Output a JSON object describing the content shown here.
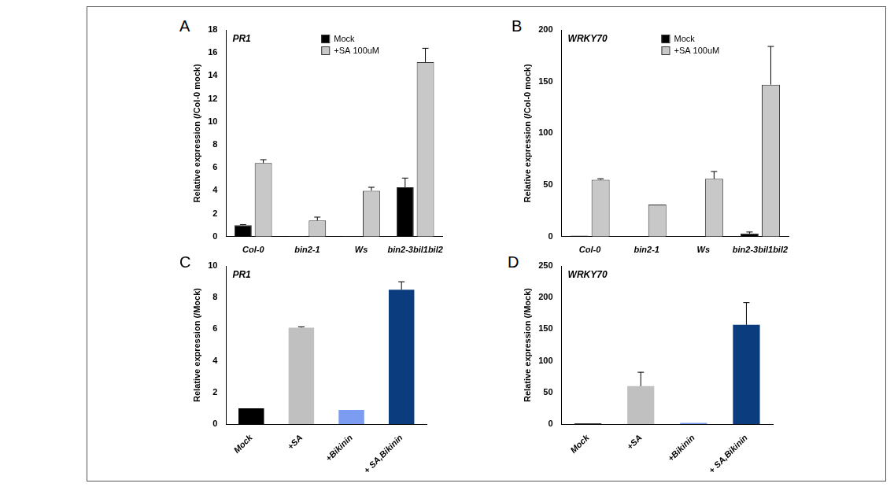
{
  "chart_data": [
    {
      "panel": "A",
      "type": "bar",
      "annotation": "PR1",
      "y_label": "Relative expression (/Col-0 mock)",
      "categories": [
        "Col-0",
        "bin2-1",
        "Ws",
        "bin2-3bil1bil2"
      ],
      "series": [
        {
          "name": "Mock",
          "color": "#000000",
          "values": [
            1.0,
            0.05,
            0.05,
            4.3
          ],
          "errors": [
            0.05,
            0,
            0,
            0.8
          ]
        },
        {
          "name": "+SA 100uM",
          "color": "#c8c8c8",
          "values": [
            6.4,
            1.4,
            4.0,
            15.2
          ],
          "errors": [
            0.3,
            0.3,
            0.3,
            1.2
          ]
        }
      ],
      "ylim": [
        0,
        18
      ],
      "yticks": [
        0,
        2,
        4,
        6,
        8,
        10,
        12,
        14,
        16,
        18
      ],
      "legend": "top",
      "grid": false
    },
    {
      "panel": "B",
      "type": "bar",
      "annotation": "WRKY70",
      "y_label": "Relative expression (/Col-0 mock)",
      "categories": [
        "Col-0",
        "bin2-1",
        "Ws",
        "bin2-3bil1bil2"
      ],
      "series": [
        {
          "name": "Mock",
          "color": "#000000",
          "values": [
            1,
            0.5,
            0.5,
            3
          ],
          "errors": [
            0,
            0,
            0,
            1.5
          ]
        },
        {
          "name": "+SA 100uM",
          "color": "#c8c8c8",
          "values": [
            55,
            31,
            56,
            147
          ],
          "errors": [
            1,
            0,
            7,
            37
          ]
        }
      ],
      "ylim": [
        0,
        200
      ],
      "yticks": [
        0,
        50,
        100,
        150,
        200
      ],
      "legend": "top",
      "grid": false
    },
    {
      "panel": "C",
      "type": "bar",
      "annotation": "PR1",
      "y_label": "Relative expression (/Mock)",
      "categories": [
        "Mock",
        "+SA",
        "+Bikinin",
        "+ SA,Bikinin"
      ],
      "values": [
        1,
        6.1,
        0.9,
        8.5
      ],
      "errors": [
        0,
        0.05,
        0,
        0.5
      ],
      "colors": [
        "#000000",
        "#c0c0c0",
        "#7b9cf0",
        "#0b3c7d"
      ],
      "ylim": [
        0,
        10
      ],
      "yticks": [
        0,
        2,
        4,
        6,
        8,
        10
      ],
      "grid": false
    },
    {
      "panel": "D",
      "type": "bar",
      "annotation": "WRKY70",
      "y_label": "Relative expression (/Mock)",
      "categories": [
        "Mock",
        "+SA",
        "+Bikinin",
        "+ SA,Bikinin"
      ],
      "values": [
        1,
        60,
        2,
        157
      ],
      "errors": [
        0,
        22,
        0,
        35
      ],
      "colors": [
        "#000000",
        "#c0c0c0",
        "#7b9cf0",
        "#0b3c7d"
      ],
      "ylim": [
        0,
        250
      ],
      "yticks": [
        0,
        50,
        100,
        150,
        200,
        250
      ],
      "grid": false
    }
  ]
}
